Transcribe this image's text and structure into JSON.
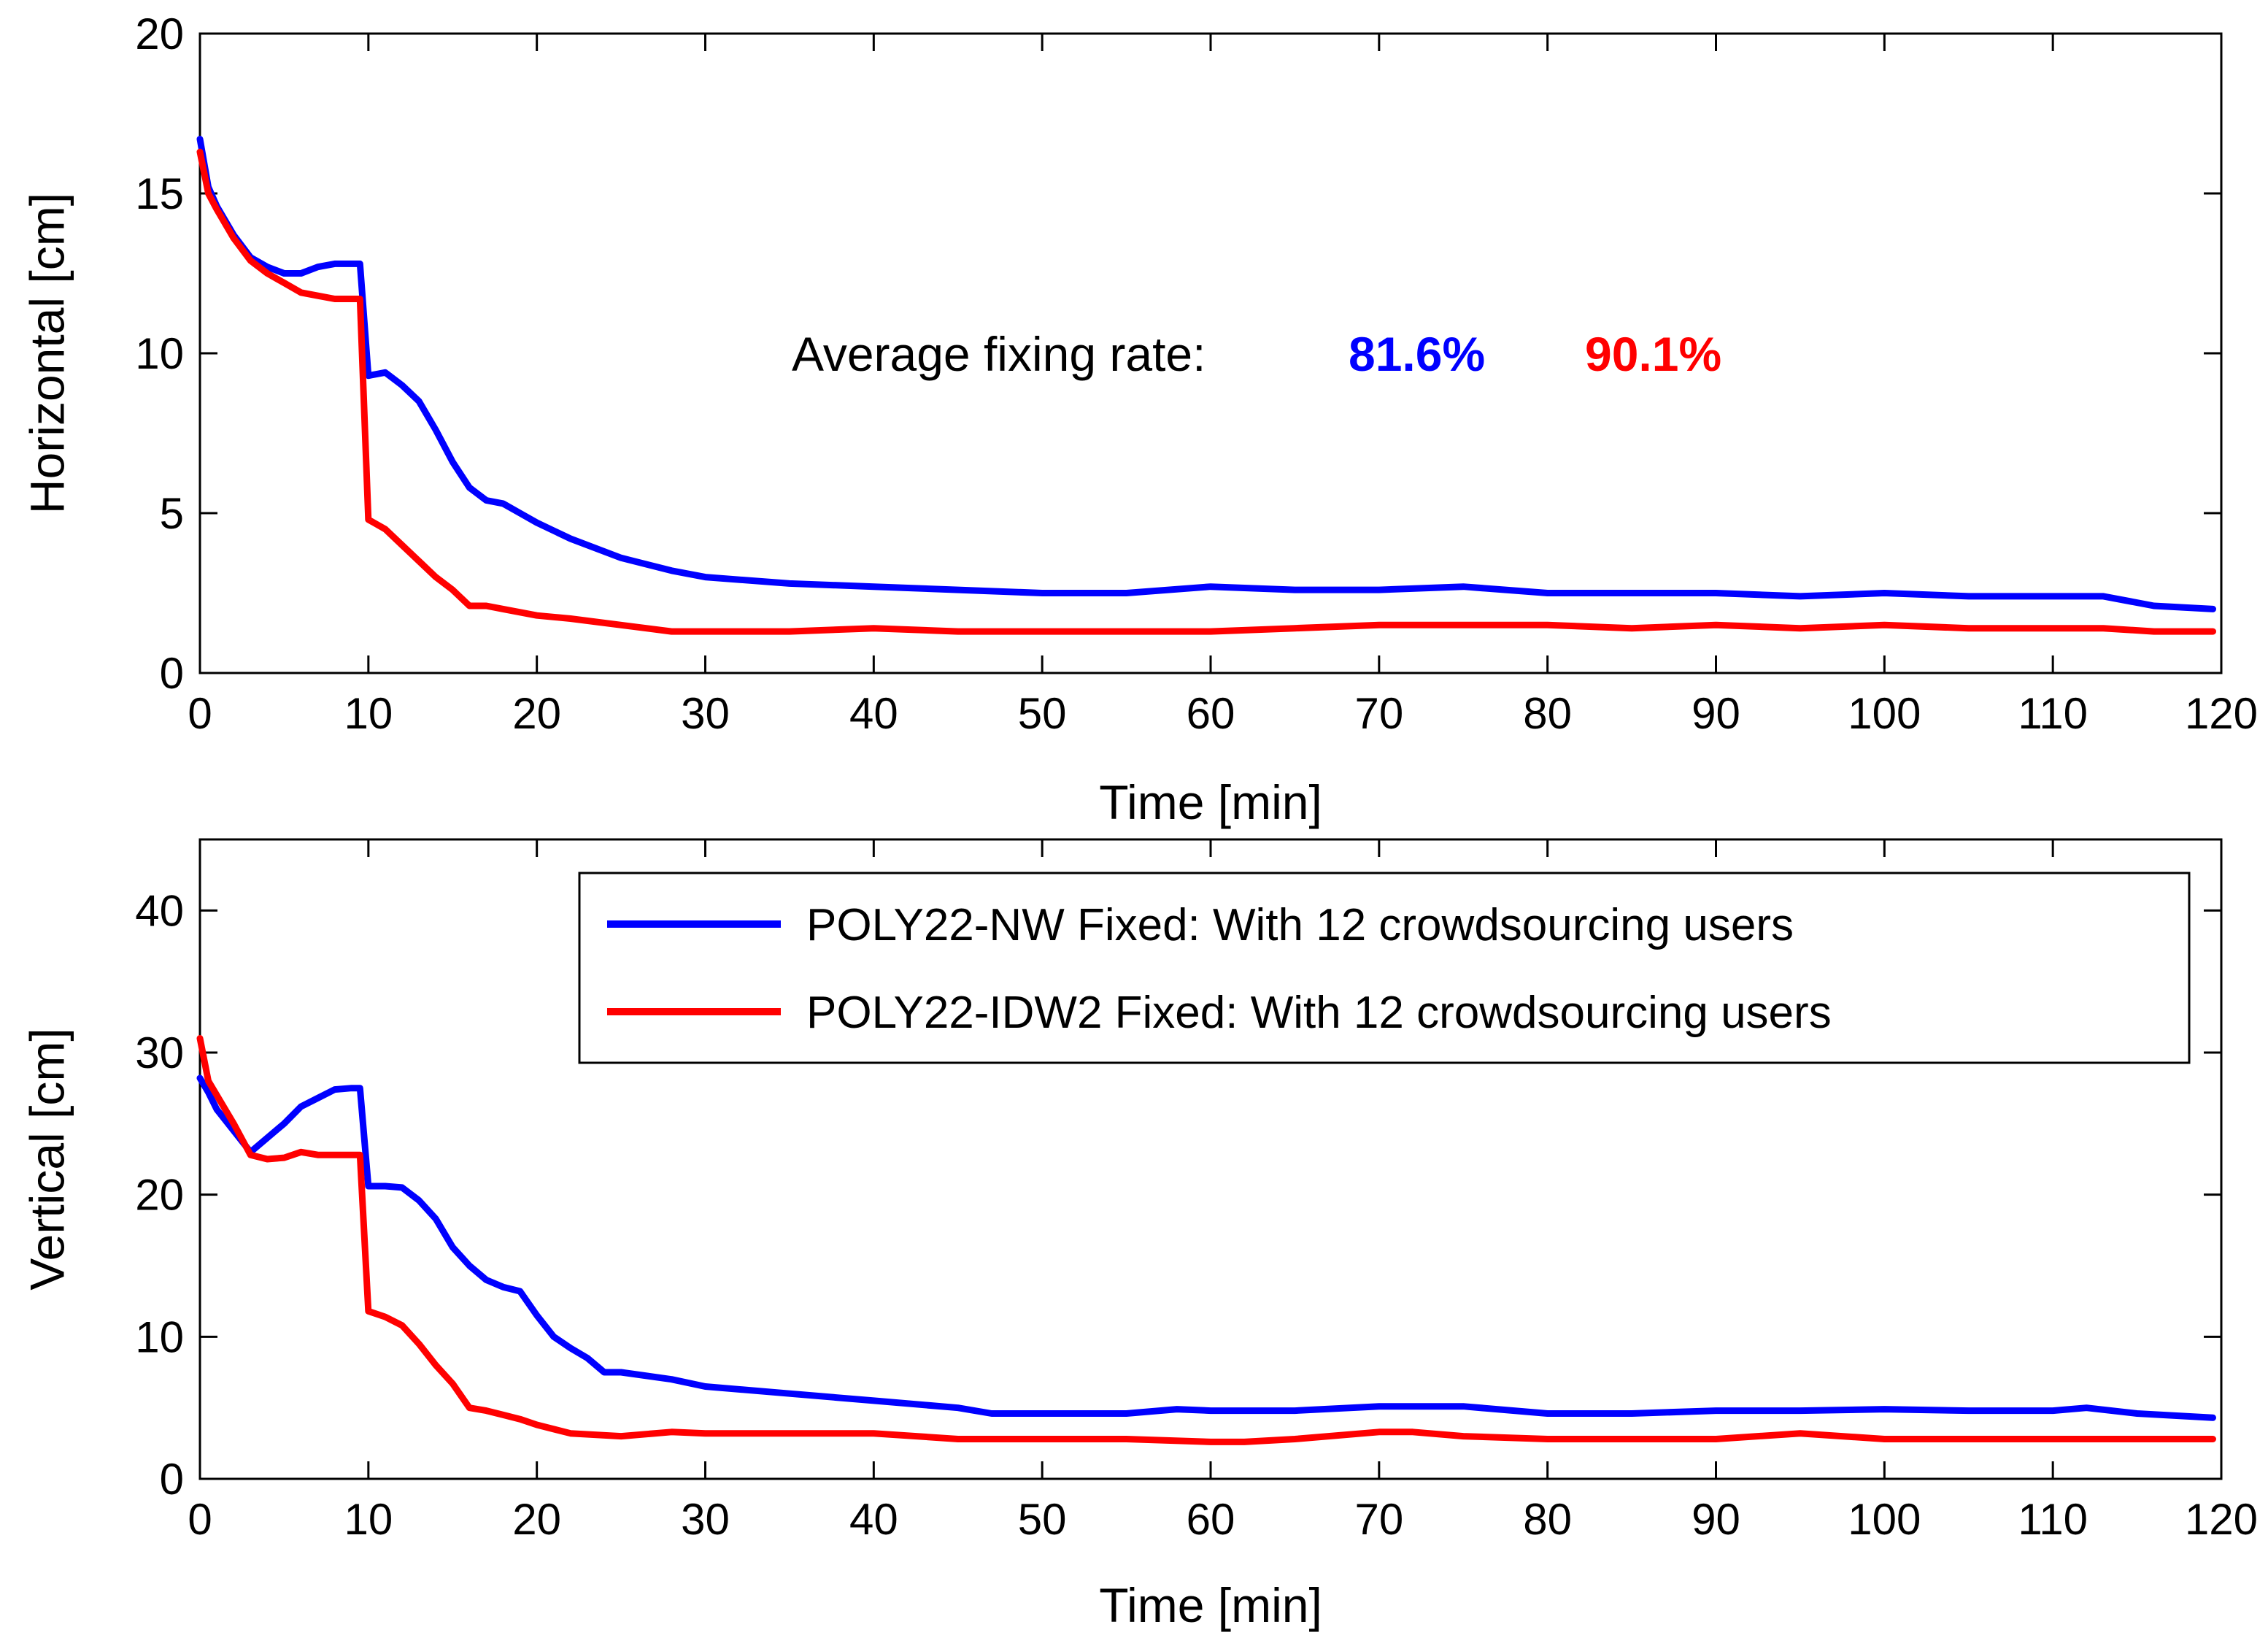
{
  "chart_data": [
    {
      "type": "line",
      "id": "horizontal",
      "title": "",
      "xlabel": "Time [min]",
      "ylabel": "Horizontal [cm]",
      "xlim": [
        0,
        120
      ],
      "ylim": [
        0,
        20
      ],
      "xticks": [
        0,
        10,
        20,
        30,
        40,
        50,
        60,
        70,
        80,
        90,
        100,
        110,
        120
      ],
      "yticks": [
        0,
        5,
        10,
        15,
        20
      ],
      "grid": false,
      "annotation": {
        "label": "Average fixing rate:",
        "values": [
          "81.6%",
          "90.1%"
        ]
      },
      "series": [
        {
          "name": "POLY22-NW Fixed: With 12 crowdsourcing users",
          "color": "#0000ff",
          "x": [
            0,
            0.5,
            1,
            2,
            3,
            4,
            5,
            6,
            7,
            8,
            9,
            9.5,
            10,
            11,
            12,
            13,
            14,
            15,
            16,
            17,
            18,
            19,
            20,
            22,
            25,
            28,
            30,
            35,
            40,
            45,
            50,
            55,
            60,
            65,
            70,
            75,
            80,
            85,
            90,
            95,
            100,
            105,
            110,
            113,
            116,
            119.5
          ],
          "values": [
            16.7,
            15.2,
            14.6,
            13.7,
            13.0,
            12.7,
            12.5,
            12.5,
            12.7,
            12.8,
            12.8,
            12.8,
            9.3,
            9.4,
            9.0,
            8.5,
            7.6,
            6.6,
            5.8,
            5.4,
            5.3,
            5.0,
            4.7,
            4.2,
            3.6,
            3.2,
            3.0,
            2.8,
            2.7,
            2.6,
            2.5,
            2.5,
            2.7,
            2.6,
            2.6,
            2.7,
            2.5,
            2.5,
            2.5,
            2.4,
            2.5,
            2.4,
            2.4,
            2.4,
            2.1,
            2.0
          ]
        },
        {
          "name": "POLY22-IDW2 Fixed: With 12 crowdsourcing users",
          "color": "#ff0000",
          "x": [
            0,
            0.5,
            1,
            2,
            3,
            4,
            5,
            6,
            7,
            8,
            9,
            9.5,
            10,
            11,
            12,
            13,
            14,
            15,
            16,
            17,
            18,
            19,
            20,
            22,
            25,
            28,
            30,
            35,
            40,
            45,
            50,
            55,
            60,
            65,
            70,
            75,
            80,
            85,
            90,
            95,
            100,
            105,
            110,
            113,
            116,
            119.5
          ],
          "values": [
            16.3,
            15.0,
            14.5,
            13.6,
            12.9,
            12.5,
            12.2,
            11.9,
            11.8,
            11.7,
            11.7,
            11.7,
            4.8,
            4.5,
            4.0,
            3.5,
            3.0,
            2.6,
            2.1,
            2.1,
            2.0,
            1.9,
            1.8,
            1.7,
            1.5,
            1.3,
            1.3,
            1.3,
            1.4,
            1.3,
            1.3,
            1.3,
            1.3,
            1.4,
            1.5,
            1.5,
            1.5,
            1.4,
            1.5,
            1.4,
            1.5,
            1.4,
            1.4,
            1.4,
            1.3,
            1.3
          ]
        }
      ]
    },
    {
      "type": "line",
      "id": "vertical",
      "title": "",
      "xlabel": "Time [min]",
      "ylabel": "Vertical [cm]",
      "xlim": [
        0,
        120
      ],
      "ylim": [
        0,
        45
      ],
      "xticks": [
        0,
        10,
        20,
        30,
        40,
        50,
        60,
        70,
        80,
        90,
        100,
        110,
        120
      ],
      "yticks": [
        0,
        10,
        20,
        30,
        40
      ],
      "grid": false,
      "legend": {
        "position": "top-right"
      },
      "series": [
        {
          "name": "POLY22-NW Fixed: With 12 crowdsourcing users",
          "color": "#0000ff",
          "x": [
            0,
            0.5,
            1,
            2,
            3,
            4,
            5,
            6,
            7,
            8,
            9,
            9.5,
            10,
            11,
            12,
            13,
            14,
            15,
            16,
            17,
            18,
            19,
            20,
            21,
            22,
            23,
            24,
            25,
            28,
            30,
            35,
            40,
            45,
            47,
            50,
            55,
            58,
            60,
            65,
            70,
            75,
            80,
            85,
            90,
            95,
            100,
            105,
            110,
            112,
            115,
            119.5
          ],
          "values": [
            28.2,
            27.2,
            26.0,
            24.5,
            23.0,
            24.0,
            25.0,
            26.2,
            26.8,
            27.4,
            27.5,
            27.5,
            20.6,
            20.6,
            20.5,
            19.6,
            18.3,
            16.3,
            15.0,
            14.0,
            13.5,
            13.2,
            11.5,
            10.0,
            9.2,
            8.5,
            7.5,
            7.5,
            7.0,
            6.5,
            6.0,
            5.5,
            5.0,
            4.6,
            4.6,
            4.6,
            4.9,
            4.8,
            4.8,
            5.1,
            5.1,
            4.6,
            4.6,
            4.8,
            4.8,
            4.9,
            4.8,
            4.8,
            5.0,
            4.6,
            4.3
          ]
        },
        {
          "name": "POLY22-IDW2 Fixed: With 12 crowdsourcing users",
          "color": "#ff0000",
          "x": [
            0,
            0.5,
            1,
            2,
            3,
            4,
            5,
            6,
            7,
            8,
            9,
            9.5,
            10,
            11,
            12,
            13,
            14,
            15,
            16,
            17,
            18,
            19,
            20,
            22,
            25,
            28,
            30,
            35,
            40,
            45,
            50,
            55,
            60,
            62,
            65,
            70,
            72,
            75,
            80,
            85,
            90,
            95,
            100,
            105,
            110,
            115,
            119.5
          ],
          "values": [
            31.0,
            28.0,
            27.0,
            25.0,
            22.8,
            22.5,
            22.6,
            23.0,
            22.8,
            22.8,
            22.8,
            22.8,
            11.8,
            11.4,
            10.8,
            9.5,
            8.0,
            6.7,
            5.0,
            4.8,
            4.5,
            4.2,
            3.8,
            3.2,
            3.0,
            3.3,
            3.2,
            3.2,
            3.2,
            2.8,
            2.8,
            2.8,
            2.6,
            2.6,
            2.8,
            3.3,
            3.3,
            3.0,
            2.8,
            2.8,
            2.8,
            3.2,
            2.8,
            2.8,
            2.8,
            2.8,
            2.8
          ]
        }
      ]
    }
  ]
}
